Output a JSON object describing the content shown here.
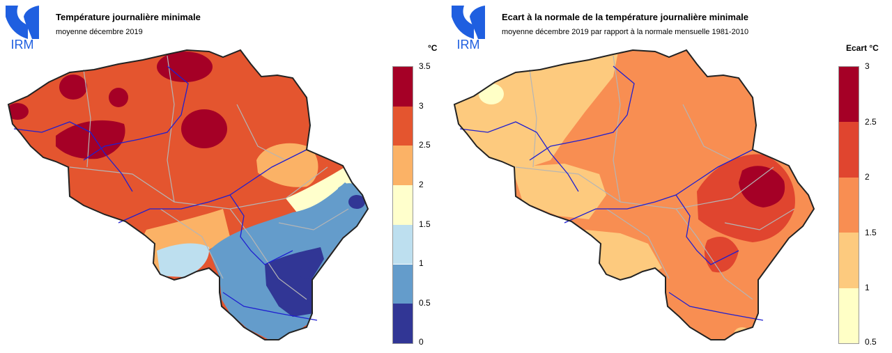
{
  "colors": {
    "map_outline": "#222222",
    "province_border": "#b5b5b5",
    "river": "#1f1fd0",
    "logo_blue": "#1f5fe0"
  },
  "maps": [
    {
      "logo_text": "IRM",
      "title": "Température journalière minimale",
      "subtitle": "moyenne décembre 2019",
      "unit": "°C",
      "legend": {
        "ticks": [
          "3.5",
          "3",
          "2.5",
          "2",
          "1.5",
          "1",
          "0.5",
          "0"
        ],
        "colors": [
          "#a50026",
          "#e4552f",
          "#fbb266",
          "#ffffcc",
          "#bddfef",
          "#649ccb",
          "#313695"
        ]
      },
      "regions": [
        {
          "level": 1,
          "shape": "base"
        },
        {
          "level": 0,
          "shape": "north-west spot"
        },
        {
          "level": 0,
          "shape": "north centre spot"
        },
        {
          "level": 0,
          "shape": "north-east spot"
        },
        {
          "level": 0,
          "shape": "west centre blob"
        },
        {
          "level": 0,
          "shape": "central blob"
        },
        {
          "level": 0,
          "shape": "east blob"
        },
        {
          "level": 2,
          "shape": "south-west band"
        },
        {
          "level": 2,
          "shape": "south-east band"
        },
        {
          "level": 3,
          "shape": "south centre area"
        },
        {
          "level": 4,
          "shape": "south-east area"
        },
        {
          "level": 5,
          "shape": "east border strip"
        },
        {
          "level": 5,
          "shape": "ardennes south"
        },
        {
          "level": 6,
          "shape": "east border spot"
        },
        {
          "level": 6,
          "shape": "south spot"
        }
      ]
    },
    {
      "logo_text": "IRM",
      "title": "Ecart à la normale de la température journalière minimale",
      "subtitle": "moyenne décembre 2019 par rapport à la normale mensuelle 1981-2010",
      "unit": "Ecart  °C",
      "legend": {
        "ticks": [
          "3",
          "2.5",
          "2",
          "1.5",
          "1",
          "0.5"
        ],
        "colors": [
          "#a50026",
          "#e0452f",
          "#f88e52",
          "#fdca7e",
          "#ffffc6"
        ]
      },
      "regions": [
        {
          "level": 2,
          "shape": "base"
        },
        {
          "level": 3,
          "shape": "north-west area"
        },
        {
          "level": 3,
          "shape": "west centre area"
        },
        {
          "level": 3,
          "shape": "south-west area"
        },
        {
          "level": 4,
          "shape": "north-west corner spot"
        },
        {
          "level": 1,
          "shape": "east blob"
        },
        {
          "level": 1,
          "shape": "south centre blob"
        },
        {
          "level": 0,
          "shape": "east core"
        },
        {
          "level": 3,
          "shape": "south spot"
        }
      ]
    }
  ]
}
